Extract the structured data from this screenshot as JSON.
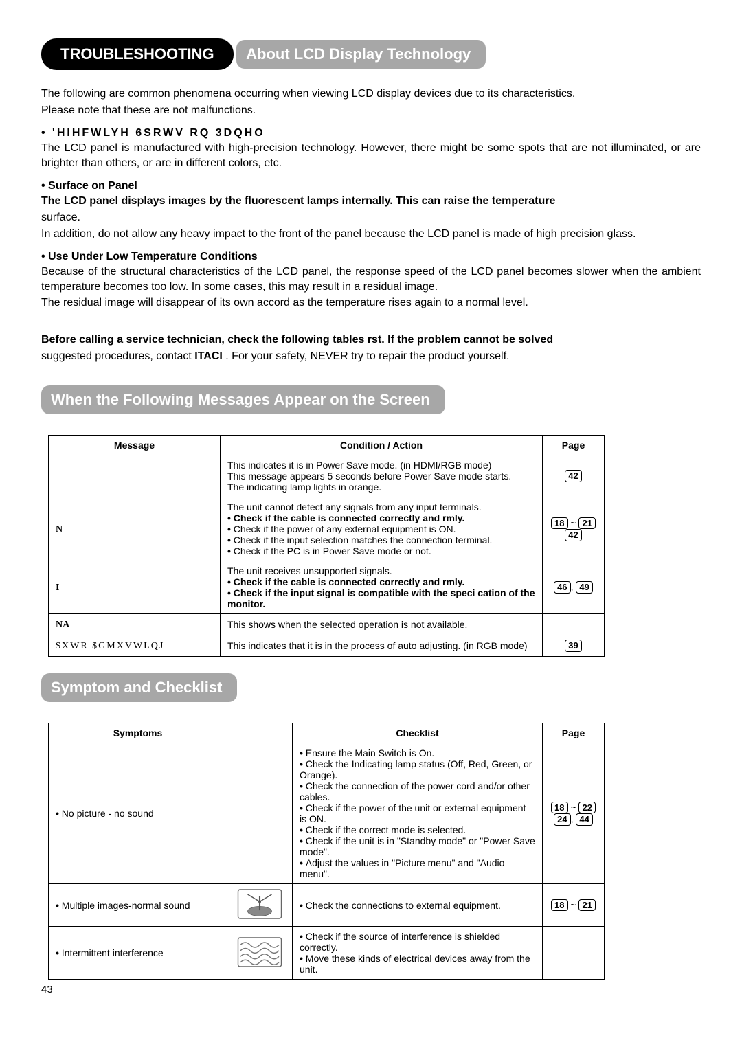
{
  "main_title": "TROUBLESHOOTING",
  "section1": {
    "heading": "About LCD Display Technology",
    "intro1": "The following are common phenomena occurring when viewing LCD display devices due to its characteristics.",
    "intro2": "Please note that these are not malfunctions.",
    "sub1_heading": "• 'HIHFWLYH 6SRWV RQ 3DQHO",
    "sub1_body": "The LCD panel is manufactured with high-precision technology. However, there might be some spots that are not illuminated, or are brighter than others, or are in different colors, etc.",
    "sub2_heading": "• Surface on Panel",
    "sub2_body_bold": "The LCD panel displays images by the fluorescent lamps internally. This can raise the temperature",
    "sub2_body2": "surface.",
    "sub2_body3": "In addition, do not allow any heavy impact to the front of the panel because the LCD panel is made of high precision glass.",
    "sub3_heading": "• Use Under Low Temperature Conditions",
    "sub3_body1": "Because of the structural characteristics of the LCD panel, the response speed of the LCD panel becomes slower when the ambient temperature becomes too low. In some cases, this may result in a residual image.",
    "sub3_body2": "The residual image will disappear of its own accord as the temperature rises again to a normal level."
  },
  "preface": {
    "bold1": "Before calling a service technician, check the following tables    rst. If the problem cannot be solved",
    "line2a": "suggested procedures, contact ",
    "line2b": "ITACI",
    "line2c": "        . For your safety, NEVER try to repair the product yourself."
  },
  "section2": {
    "heading": "When the Following Messages Appear on the Screen",
    "headers": {
      "c1": "Message",
      "c2": "Condition / Action",
      "c3": "Page"
    },
    "rows": [
      {
        "msg": "",
        "cond": "This indicates it is in Power Save mode. (in HDMI/RGB mode)\nThis message appears 5 seconds before Power Save mode starts.\nThe indicating lamp lights in orange.",
        "pages": [
          "42"
        ]
      },
      {
        "msg": "N",
        "cond_lines": [
          {
            "t": "The unit cannot detect any signals from any input terminals.",
            "b": false,
            "bul": false
          },
          {
            "t": "Check if the cable is connected correctly and    rmly.",
            "b": true,
            "bul": true
          },
          {
            "t": "Check if the power of any external equipment is ON.",
            "b": false,
            "bul": true
          },
          {
            "t": "Check if the input selection matches the connection terminal.",
            "b": false,
            "bul": true
          },
          {
            "t": "Check if the PC is in Power Save mode or not.",
            "b": false,
            "bul": true
          }
        ],
        "pages_range": [
          "18",
          "21"
        ],
        "pages_extra": [
          "42"
        ]
      },
      {
        "msg": "I",
        "cond_lines": [
          {
            "t": "The unit receives unsupported signals.",
            "b": false,
            "bul": false
          },
          {
            "t": "Check if the cable is connected correctly and    rmly.",
            "b": true,
            "bul": true
          },
          {
            "t": "Check if the input signal is compatible with the speci   cation of the monitor.",
            "b": true,
            "bul": true
          }
        ],
        "pages_pair": [
          "46",
          "49"
        ]
      },
      {
        "msg": "NA",
        "cond": "This shows when the selected operation is not available.",
        "pages": []
      },
      {
        "msg": "$XWR $GMXVWLQJ",
        "cond": "This indicates that it is in the process of auto adjusting. (in RGB mode)",
        "pages": [
          "39"
        ]
      }
    ]
  },
  "section3": {
    "heading": "Symptom and Checklist",
    "headers": {
      "c1": "Symptoms",
      "c2": "",
      "c3": "Checklist",
      "c4": "Page"
    },
    "rows": [
      {
        "sym": "No picture - no sound",
        "checklist": [
          "Ensure the Main Switch is On.",
          "Check the Indicating lamp status (Off, Red, Green, or Orange).",
          "Check the connection of the power cord and/or other cables.",
          "Check if the power of the unit or external equipment is ON.",
          "Check if the correct mode is selected.",
          "Check if the unit is in \"Standby mode\" or \"Power Save mode\".",
          "Adjust the values in \"Picture menu\" and \"Audio menu\"."
        ],
        "pages_range": [
          "18",
          "22"
        ],
        "pages_pair": [
          "24",
          "44"
        ],
        "icon": "none"
      },
      {
        "sym": "Multiple images-normal sound",
        "checklist": [
          "Check the connections to external equipment."
        ],
        "pages_range": [
          "18",
          "21"
        ],
        "icon": "antenna"
      },
      {
        "sym": "Intermittent interference",
        "checklist": [
          "Check if the source of interference is shielded correctly.",
          "Move these kinds of electrical devices away from the unit."
        ],
        "icon": "waves"
      }
    ]
  },
  "footer_page": "43"
}
